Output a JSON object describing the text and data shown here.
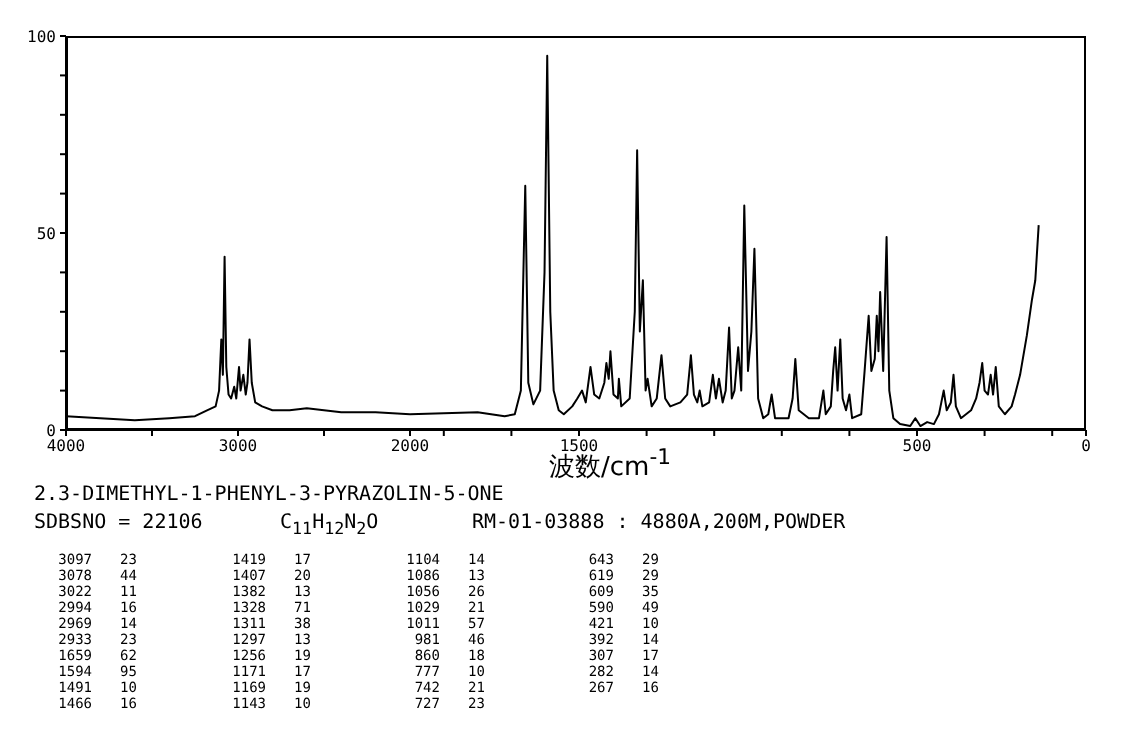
{
  "chart_data": [
    {
      "type": "line",
      "title": "2.3-DIMETHYL-1-PHENYL-3-PYRAZOLIN-5-ONE",
      "annotations": [
        "SDBSNO = 22106",
        "C$_{11}$H$_{12}$N$_{2}$O",
        "RM-01-03888 : 4880A,200M,POWDER",
        "3097 23",
        "3078 44",
        "3022 11",
        "2994 16",
        "2969 14",
        "2933 23",
        "1659 62",
        "1594 95",
        "1491 10",
        "1466 16",
        "1419 17",
        "1407 20",
        "1382 13",
        "1328 71",
        "1311 38",
        "1297 13",
        "1256 19",
        "1171 17",
        "1169 19",
        "1143 10",
        "1104 14",
        "1086 13",
        "1056 26",
        "1029 21",
        "1011 57",
        "981 46",
        "860 18",
        "777 10",
        "742 21",
        "727 23",
        "643 29",
        "619 29",
        "609 35",
        "590 49",
        "421 10",
        "392 14",
        "307 17",
        "282 14",
        "267 16"
      ],
      "xlim": [
        4000,
        2000
      ],
      "xticks": [
        4000,
        {
          "value": 3500,
          "label": null
        },
        3000,
        {
          "value": 2500,
          "label": null
        },
        2000
      ],
      "ylim": [
        0,
        100
      ],
      "yticks": [
        0,
        {
          "value": 10,
          "label": null
        },
        {
          "value": 20,
          "label": null
        },
        {
          "value": 30,
          "label": null
        },
        {
          "value": 40,
          "label": null
        },
        50,
        {
          "value": 60,
          "label": null
        },
        {
          "value": 70,
          "label": null
        },
        {
          "value": 80,
          "label": null
        },
        {
          "value": 90,
          "label": null
        },
        100
      ],
      "series": [
        {
          "color": "#000000",
          "x": [
            4000,
            3800,
            3600,
            3400,
            3250,
            3180,
            3130,
            3110,
            3097,
            3088,
            3078,
            3068,
            3055,
            3040,
            3022,
            3010,
            2994,
            2985,
            2969,
            2955,
            2945,
            2933,
            2920,
            2900,
            2860,
            2800,
            2700,
            2600,
            2400,
            2200,
            2000
          ],
          "values": [
            3.5,
            3,
            2.5,
            3,
            3.5,
            5,
            6,
            10,
            23,
            14,
            44,
            16,
            9,
            8,
            11,
            8,
            16,
            10,
            14,
            9,
            12,
            23,
            12,
            7,
            6,
            5,
            5,
            5.5,
            4.5,
            4.5,
            4
          ]
        }
      ]
    },
    {
      "type": "line",
      "xlabel": "波数/cm$^{-1}$",
      "tick_labels": "x",
      "xlim": [
        2000,
        0
      ],
      "xticks": [
        {
          "value": 1900,
          "label": null
        },
        {
          "value": 1700,
          "label": null
        },
        1500,
        {
          "value": 1300,
          "label": null
        },
        {
          "value": 1100,
          "label": null
        },
        {
          "value": 900,
          "label": null
        },
        {
          "value": 700,
          "label": null
        },
        500,
        {
          "value": 300,
          "label": null
        },
        {
          "value": 100,
          "label": null
        },
        0
      ],
      "ylim": [
        0,
        100
      ],
      "series": [
        {
          "color": "#000000",
          "x": [
            2000,
            1800,
            1720,
            1690,
            1672,
            1659,
            1650,
            1635,
            1615,
            1602,
            1594,
            1585,
            1575,
            1560,
            1545,
            1520,
            1505,
            1491,
            1480,
            1466,
            1455,
            1440,
            1425,
            1419,
            1412,
            1407,
            1398,
            1385,
            1382,
            1375,
            1350,
            1335,
            1328,
            1320,
            1311,
            1303,
            1297,
            1285,
            1270,
            1256,
            1245,
            1230,
            1200,
            1180,
            1171,
            1169,
            1160,
            1150,
            1143,
            1135,
            1115,
            1104,
            1095,
            1086,
            1075,
            1066,
            1056,
            1048,
            1040,
            1029,
            1020,
            1011,
            1000,
            990,
            981,
            970,
            955,
            940,
            930,
            920,
            880,
            868,
            860,
            850,
            820,
            790,
            777,
            770,
            755,
            748,
            742,
            735,
            727,
            720,
            710,
            700,
            692,
            665,
            655,
            643,
            635,
            625,
            619,
            614,
            609,
            600,
            590,
            582,
            570,
            550,
            520,
            505,
            490,
            470,
            450,
            435,
            428,
            421,
            412,
            400,
            392,
            385,
            370,
            340,
            325,
            315,
            307,
            300,
            290,
            282,
            275,
            267,
            258,
            240,
            220,
            210,
            195,
            175,
            160,
            150,
            140
          ],
          "values": [
            4,
            4.5,
            3.5,
            4,
            10,
            62,
            12,
            6.5,
            10,
            40,
            95,
            30,
            10,
            5,
            4,
            6,
            8,
            10,
            7,
            16,
            9,
            8,
            12,
            17,
            13,
            20,
            9,
            8,
            13,
            6,
            8,
            30,
            71,
            25,
            38,
            10,
            13,
            6,
            8,
            19,
            8,
            6,
            7,
            9,
            17,
            19,
            9,
            7,
            10,
            6,
            7,
            14,
            8,
            13,
            7,
            10,
            26,
            8,
            10,
            21,
            10,
            57,
            15,
            25,
            46,
            8,
            3,
            4,
            9,
            3,
            3,
            8,
            18,
            5,
            3,
            3,
            10,
            4,
            6,
            15,
            21,
            10,
            23,
            8,
            5,
            9,
            3,
            4,
            15,
            29,
            15,
            18,
            29,
            20,
            35,
            15,
            49,
            10,
            3,
            1.5,
            1,
            3,
            1,
            2,
            1.5,
            4,
            7,
            10,
            5,
            7,
            14,
            6,
            3,
            5,
            8,
            12,
            17,
            10,
            9,
            14,
            9,
            16,
            6,
            4,
            6,
            9,
            14,
            24,
            33,
            38,
            52
          ]
        }
      ]
    }
  ]
}
